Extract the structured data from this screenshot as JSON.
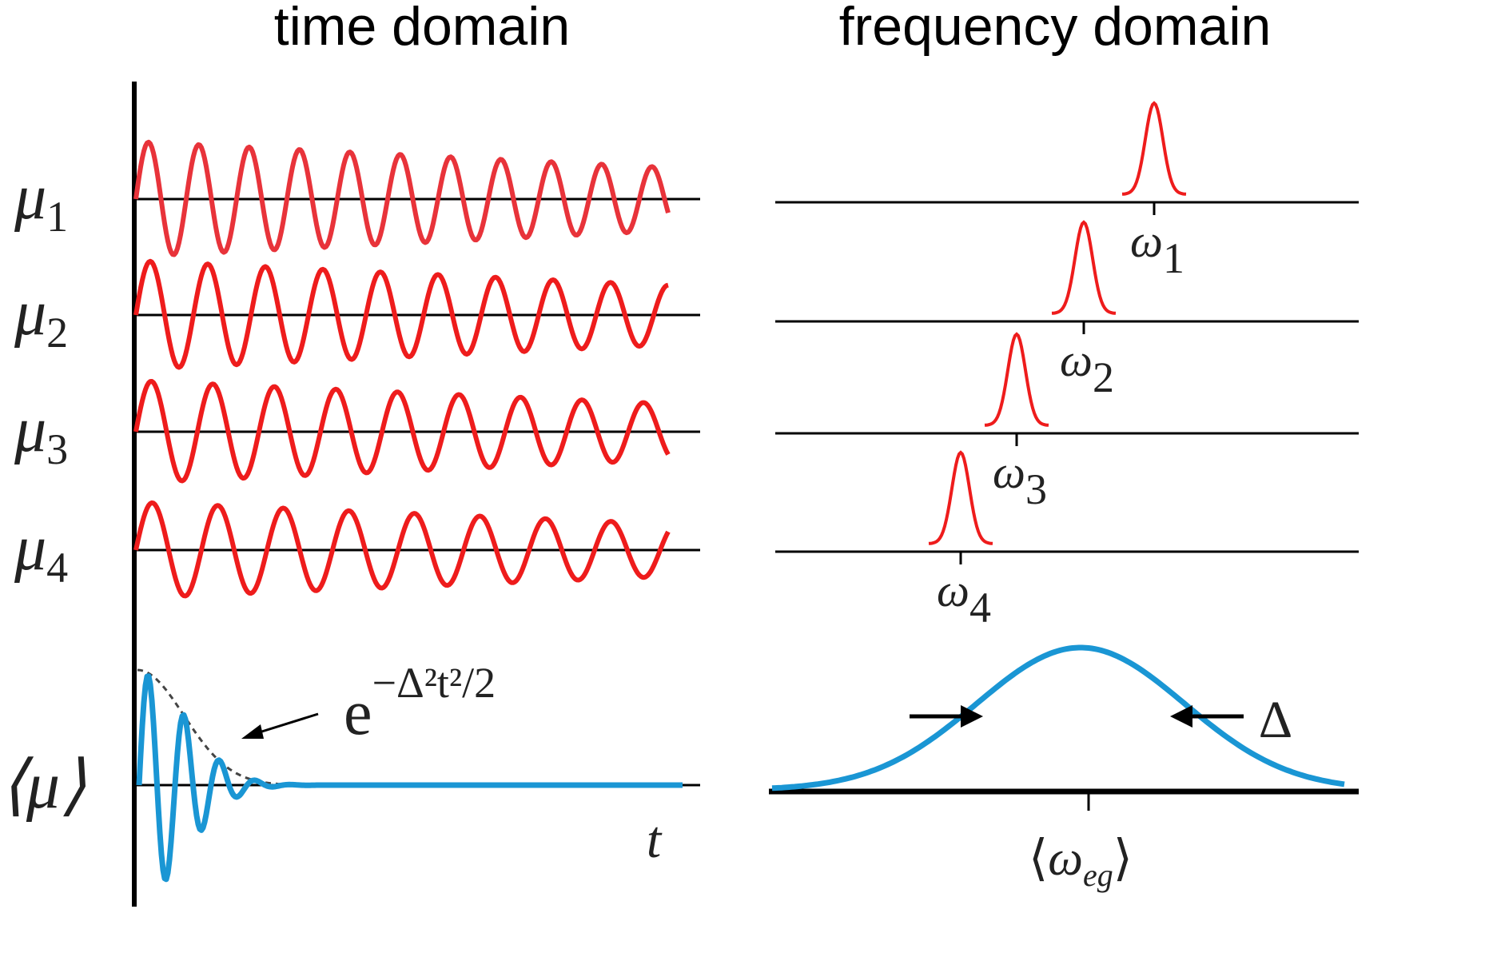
{
  "headings": {
    "time": "time domain",
    "frequency": "frequency domain"
  },
  "time_panel": {
    "axis_label": "t",
    "rows": [
      {
        "symbol": "μ",
        "subscript": "1",
        "color": "#e8333a"
      },
      {
        "symbol": "μ",
        "subscript": "2",
        "color": "#ee1c1c"
      },
      {
        "symbol": "μ",
        "subscript": "3",
        "color": "#ee1c1c"
      },
      {
        "symbol": "μ",
        "subscript": "4",
        "color": "#ee1c1c"
      }
    ],
    "average": {
      "symbol": "⟨μ⟩",
      "color": "#1a96d4"
    },
    "envelope": {
      "base": "e",
      "exponent": "−Δ²t²/2",
      "style": "dashed"
    }
  },
  "frequency_panel": {
    "peaks": [
      {
        "symbol": "ω",
        "subscript": "1"
      },
      {
        "symbol": "ω",
        "subscript": "2"
      },
      {
        "symbol": "ω",
        "subscript": "3"
      },
      {
        "symbol": "ω",
        "subscript": "4"
      }
    ],
    "distribution": {
      "center_label": "ω",
      "center_subscript": "eg",
      "width_label": "Δ",
      "color": "#1a96d4"
    }
  },
  "colors": {
    "signal": "#ee1c1c",
    "average": "#1a96d4",
    "axis": "#000000",
    "envelope": "#444444"
  }
}
